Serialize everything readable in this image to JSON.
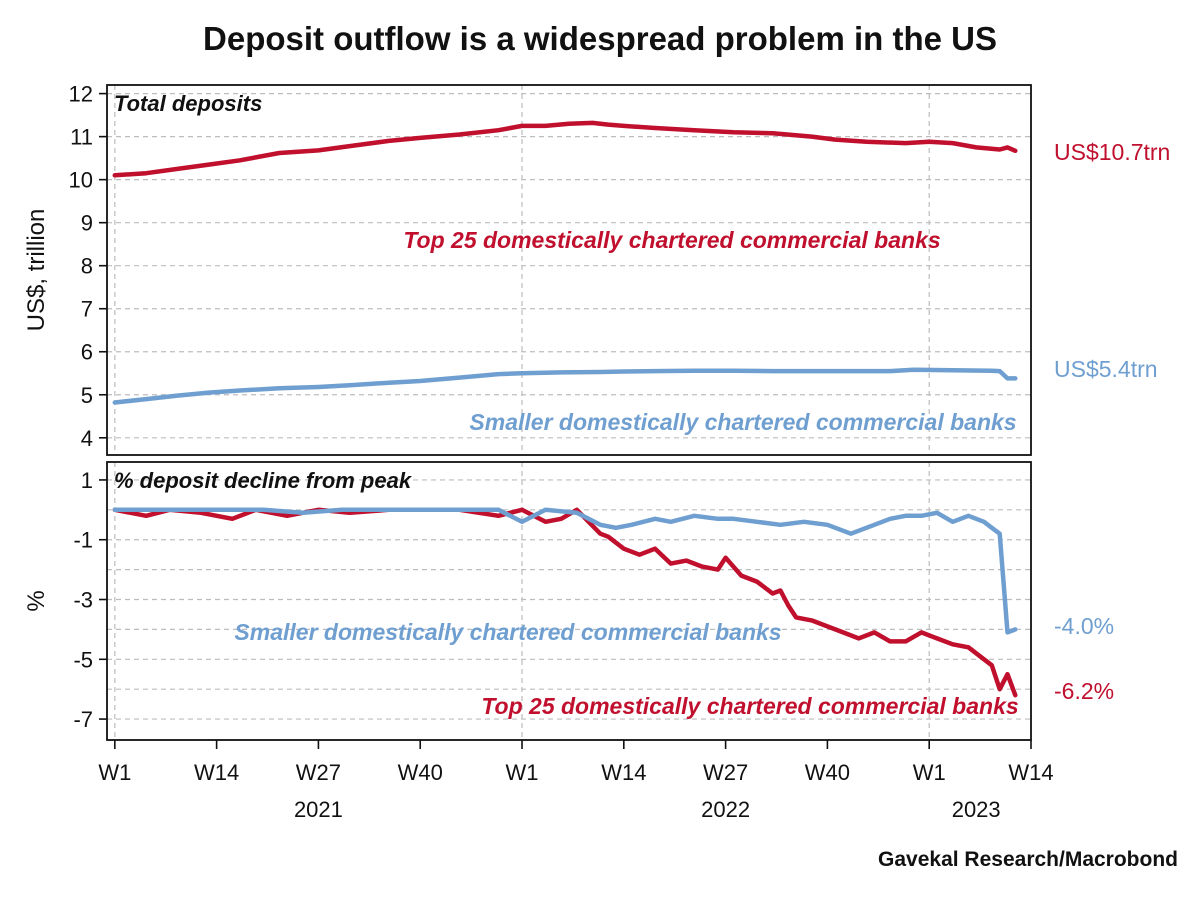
{
  "colors": {
    "top25": "#c0102e",
    "smaller": "#6f9fd0"
  },
  "chart_data": {
    "type": "line",
    "title": "Deposit outflow is a widespread problem in the US",
    "source": "Gavekal Research/Macrobond",
    "x_tick_labels": [
      "W1",
      "W14",
      "W27",
      "W40",
      "W1",
      "W14",
      "W27",
      "W40",
      "W1",
      "W14"
    ],
    "x_tick_weeks": [
      1,
      14,
      27,
      40,
      53,
      66,
      79,
      92,
      105,
      118
    ],
    "year_labels": [
      {
        "label": "2021",
        "week": 27
      },
      {
        "label": "2022",
        "week": 79
      },
      {
        "label": "2023",
        "week": 111
      }
    ],
    "xlim": [
      0,
      118
    ],
    "panels": [
      {
        "id": "top",
        "title": "Total deposits",
        "ylabel": "US$, trillion",
        "ylim": [
          3.6,
          12.2
        ],
        "yticks": [
          "12",
          "11",
          "10",
          "9",
          "8",
          "7",
          "6",
          "5",
          "4"
        ],
        "ytick_values": [
          12,
          11,
          10,
          9,
          8,
          7,
          6,
          5,
          4
        ],
        "annotations": [
          {
            "text": "Top 25 domestically chartered commercial banks",
            "series": "top25"
          },
          {
            "text": "Smaller domestically chartered commercial banks",
            "series": "smaller"
          }
        ],
        "end_labels": [
          {
            "text": "US$10.7trn",
            "series": "top25"
          },
          {
            "text": "US$5.4trn",
            "series": "smaller"
          }
        ],
        "series": [
          {
            "name": "Top 25 domestically chartered commercial banks",
            "key": "top25",
            "x": [
              1,
              5,
              9,
              13,
              17,
              22,
              27,
              31,
              36,
              40,
              45,
              50,
              53,
              56,
              59,
              62,
              64,
              66,
              70,
              75,
              80,
              85,
              90,
              93,
              97,
              102,
              105,
              108,
              111,
              114,
              115,
              116
            ],
            "values": [
              10.1,
              10.15,
              10.25,
              10.35,
              10.45,
              10.62,
              10.68,
              10.78,
              10.9,
              10.97,
              11.05,
              11.15,
              11.25,
              11.25,
              11.3,
              11.32,
              11.28,
              11.25,
              11.2,
              11.15,
              11.1,
              11.08,
              11.0,
              10.93,
              10.88,
              10.85,
              10.88,
              10.85,
              10.75,
              10.7,
              10.75,
              10.67
            ]
          },
          {
            "name": "Smaller domestically chartered commercial banks",
            "key": "smaller",
            "x": [
              1,
              5,
              9,
              13,
              17,
              22,
              27,
              31,
              36,
              40,
              45,
              50,
              53,
              58,
              63,
              66,
              70,
              75,
              80,
              85,
              90,
              95,
              100,
              103,
              108,
              113,
              114,
              115,
              116
            ],
            "values": [
              4.82,
              4.9,
              4.98,
              5.05,
              5.1,
              5.15,
              5.18,
              5.22,
              5.28,
              5.32,
              5.4,
              5.48,
              5.5,
              5.52,
              5.53,
              5.54,
              5.55,
              5.56,
              5.56,
              5.55,
              5.55,
              5.55,
              5.55,
              5.58,
              5.57,
              5.56,
              5.55,
              5.38,
              5.38
            ]
          }
        ]
      },
      {
        "id": "bottom",
        "title": "% deposit decline from peak",
        "ylabel": "%",
        "ylim": [
          -7.7,
          1.6
        ],
        "yticks": [
          "1",
          "-1",
          "-3",
          "-5",
          "-7"
        ],
        "ytick_values": [
          1,
          -1,
          -3,
          -5,
          -7
        ],
        "grid_values": [
          1,
          0,
          -1,
          -2,
          -3,
          -4,
          -5,
          -6,
          -7
        ],
        "annotations": [
          {
            "text": "Smaller domestically chartered commercial banks",
            "series": "smaller"
          },
          {
            "text": "Top 25 domestically chartered commercial banks",
            "series": "top25"
          }
        ],
        "end_labels": [
          {
            "text": "-4.0%",
            "series": "smaller"
          },
          {
            "text": "-6.2%",
            "series": "top25"
          }
        ],
        "series": [
          {
            "name": "Top 25 domestically chartered commercial banks",
            "key": "top25",
            "x": [
              1,
              5,
              8,
              12,
              16,
              19,
              23,
              27,
              31,
              36,
              40,
              45,
              50,
              53,
              56,
              58,
              60,
              63,
              64,
              66,
              68,
              70,
              72,
              74,
              76,
              78,
              79,
              81,
              83,
              85,
              86,
              87,
              88,
              90,
              92,
              94,
              96,
              98,
              100,
              102,
              104,
              106,
              108,
              110,
              112,
              113,
              114,
              115,
              116
            ],
            "values": [
              0,
              -0.2,
              0,
              -0.1,
              -0.3,
              0,
              -0.2,
              0,
              -0.1,
              0,
              0,
              0,
              -0.2,
              0,
              -0.4,
              -0.3,
              0,
              -0.8,
              -0.9,
              -1.3,
              -1.5,
              -1.3,
              -1.8,
              -1.7,
              -1.9,
              -2.0,
              -1.6,
              -2.2,
              -2.4,
              -2.8,
              -2.7,
              -3.2,
              -3.6,
              -3.7,
              -3.9,
              -4.1,
              -4.3,
              -4.1,
              -4.4,
              -4.4,
              -4.1,
              -4.3,
              -4.5,
              -4.6,
              -5.0,
              -5.2,
              -6.0,
              -5.5,
              -6.2
            ]
          },
          {
            "name": "Smaller domestically chartered commercial banks",
            "key": "smaller",
            "x": [
              1,
              5,
              10,
              15,
              20,
              25,
              30,
              35,
              40,
              45,
              50,
              53,
              56,
              60,
              63,
              65,
              67,
              70,
              72,
              75,
              78,
              80,
              83,
              86,
              89,
              92,
              95,
              98,
              100,
              102,
              104,
              106,
              108,
              110,
              112,
              113,
              114,
              115,
              116
            ],
            "values": [
              0,
              0,
              0,
              0,
              0,
              -0.1,
              0,
              0,
              0,
              0,
              0,
              -0.4,
              0,
              -0.1,
              -0.5,
              -0.6,
              -0.5,
              -0.3,
              -0.4,
              -0.2,
              -0.3,
              -0.3,
              -0.4,
              -0.5,
              -0.4,
              -0.5,
              -0.8,
              -0.5,
              -0.3,
              -0.2,
              -0.2,
              -0.1,
              -0.4,
              -0.2,
              -0.4,
              -0.6,
              -0.8,
              -4.1,
              -4.0
            ]
          }
        ]
      }
    ]
  }
}
